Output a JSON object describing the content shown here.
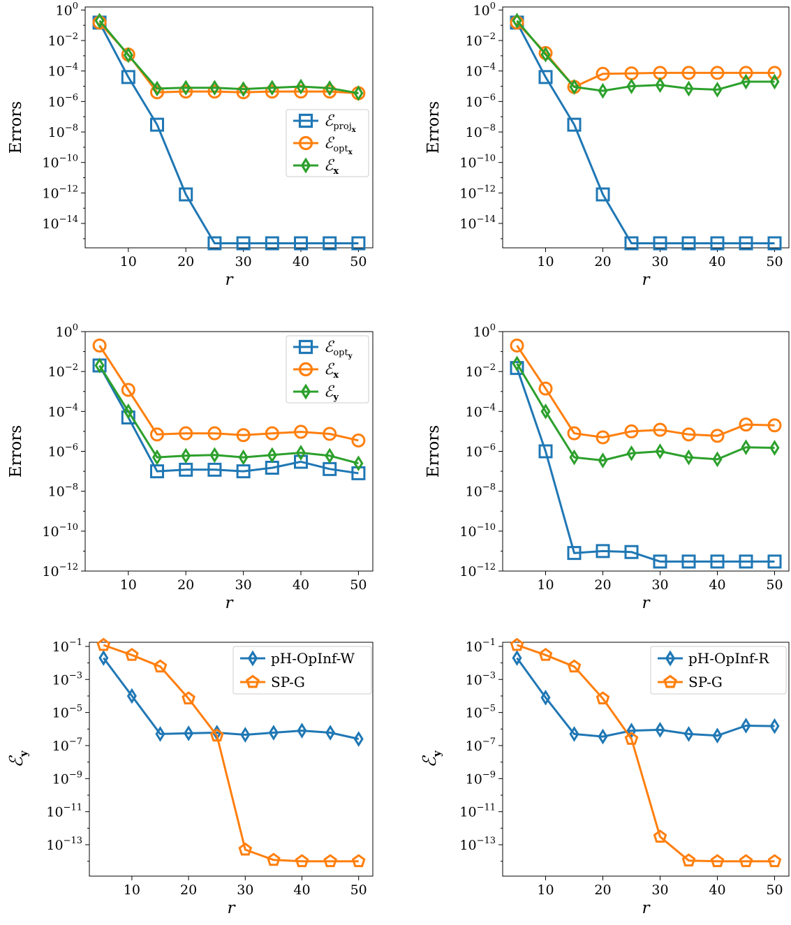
{
  "colors": {
    "blue": "#1f77b4",
    "orange": "#ff7f0e",
    "green": "#2ca02c"
  },
  "chart_data": [
    {
      "type": "line",
      "log_y": true,
      "xlabel": "r",
      "ylabel": "Errors",
      "xticks": [
        10,
        20,
        30,
        40,
        50
      ],
      "yticks": [
        0,
        -2,
        -4,
        -6,
        -8,
        -10,
        -12,
        -14
      ],
      "ylim_exp": [
        -15.6,
        0.2
      ],
      "legend": {
        "position": "center-right",
        "entries": [
          {
            "main": "ℰ",
            "sub": "proj",
            "subsub": "x"
          },
          {
            "main": "ℰ",
            "sub": "opt",
            "subsub": "x"
          },
          {
            "main": "ℰ",
            "sub": "x"
          }
        ]
      },
      "x": [
        5,
        10,
        15,
        20,
        25,
        30,
        35,
        40,
        45,
        50
      ],
      "series": [
        {
          "color": "blue",
          "marker": "square",
          "values": [
            0.15,
            4e-05,
            3e-08,
            8e-13,
            5e-16,
            5e-16,
            5e-16,
            5e-16,
            5e-16,
            5e-16
          ]
        },
        {
          "color": "orange",
          "marker": "circle",
          "values": [
            0.15,
            0.0012,
            4e-06,
            4.5e-06,
            4.5e-06,
            4e-06,
            4.5e-06,
            4.5e-06,
            4.5e-06,
            3.5e-06
          ]
        },
        {
          "color": "green",
          "marker": "diamond",
          "values": [
            0.2,
            0.0011,
            7e-06,
            8e-06,
            8e-06,
            6.5e-06,
            8e-06,
            9.5e-06,
            7.5e-06,
            3.5e-06
          ]
        }
      ]
    },
    {
      "type": "line",
      "log_y": true,
      "xlabel": "r",
      "ylabel": "Errors",
      "xticks": [
        10,
        20,
        30,
        40,
        50
      ],
      "yticks": [
        0,
        -2,
        -4,
        -6,
        -8,
        -10,
        -12,
        -14
      ],
      "ylim_exp": [
        -15.6,
        0.2
      ],
      "legend": null,
      "x": [
        5,
        10,
        15,
        20,
        25,
        30,
        35,
        40,
        45,
        50
      ],
      "series": [
        {
          "color": "blue",
          "marker": "square",
          "values": [
            0.15,
            4e-05,
            3e-08,
            8e-13,
            5e-16,
            5e-16,
            5e-16,
            5e-16,
            5e-16,
            5e-16
          ]
        },
        {
          "color": "orange",
          "marker": "circle",
          "values": [
            0.15,
            0.0015,
            9e-06,
            6.5e-05,
            7e-05,
            7.5e-05,
            7.5e-05,
            7.5e-05,
            7.5e-05,
            7.5e-05
          ]
        },
        {
          "color": "green",
          "marker": "diamond",
          "values": [
            0.2,
            0.0012,
            9e-06,
            5e-06,
            1e-05,
            1.2e-05,
            7e-06,
            6e-06,
            2e-05,
            2e-05
          ]
        }
      ]
    },
    {
      "type": "line",
      "log_y": true,
      "xlabel": "r",
      "ylabel": "Errors",
      "xticks": [
        10,
        20,
        30,
        40,
        50
      ],
      "yticks": [
        0,
        -2,
        -4,
        -6,
        -8,
        -10,
        -12
      ],
      "ylim_exp": [
        -12,
        0
      ],
      "legend": {
        "position": "top-right",
        "entries": [
          {
            "main": "ℰ",
            "sub": "opt",
            "subsub": "y"
          },
          {
            "main": "ℰ",
            "sub": "x"
          },
          {
            "main": "ℰ",
            "sub": "y"
          }
        ]
      },
      "x": [
        5,
        10,
        15,
        20,
        25,
        30,
        35,
        40,
        45,
        50
      ],
      "series": [
        {
          "color": "blue",
          "marker": "square",
          "values": [
            0.02,
            5e-05,
            1e-07,
            1.2e-07,
            1.2e-07,
            1e-07,
            1.5e-07,
            3e-07,
            1.3e-07,
            8e-08
          ]
        },
        {
          "color": "orange",
          "marker": "circle",
          "values": [
            0.2,
            0.0012,
            7e-06,
            8e-06,
            8e-06,
            6.5e-06,
            8e-06,
            9.5e-06,
            7.5e-06,
            3.5e-06
          ]
        },
        {
          "color": "green",
          "marker": "diamond",
          "values": [
            0.02,
            0.0001,
            5e-07,
            6e-07,
            6.5e-07,
            5e-07,
            6.5e-07,
            8.5e-07,
            6e-07,
            2.5e-07
          ]
        }
      ]
    },
    {
      "type": "line",
      "log_y": true,
      "xlabel": "r",
      "ylabel": "Errors",
      "xticks": [
        10,
        20,
        30,
        40,
        50
      ],
      "yticks": [
        0,
        -2,
        -4,
        -6,
        -8,
        -10,
        -12
      ],
      "ylim_exp": [
        -12,
        0
      ],
      "legend": null,
      "x": [
        5,
        10,
        15,
        20,
        25,
        30,
        35,
        40,
        45,
        50
      ],
      "series": [
        {
          "color": "blue",
          "marker": "square",
          "values": [
            0.015,
            1e-06,
            8e-12,
            1e-11,
            9e-12,
            3e-12,
            3e-12,
            3e-12,
            3e-12,
            3e-12
          ]
        },
        {
          "color": "orange",
          "marker": "circle",
          "values": [
            0.2,
            0.0014,
            8e-06,
            5e-06,
            1e-05,
            1.2e-05,
            7e-06,
            6e-06,
            2.2e-05,
            2e-05
          ]
        },
        {
          "color": "green",
          "marker": "diamond",
          "values": [
            0.025,
            0.0001,
            5e-07,
            3.5e-07,
            8e-07,
            1e-06,
            5e-07,
            4e-07,
            1.6e-06,
            1.5e-06
          ]
        }
      ]
    },
    {
      "type": "line",
      "log_y": true,
      "xlabel": "r",
      "ylabel": "ℰ",
      "ylabel_sub": "y",
      "xticks": [
        10,
        20,
        30,
        40,
        50
      ],
      "yticks": [
        -1,
        -3,
        -5,
        -7,
        -9,
        -11,
        -13
      ],
      "ylim_exp": [
        -14.9,
        -0.75
      ],
      "legend": {
        "position": "top-right",
        "entries": [
          {
            "text": "pH-OpInf-W"
          },
          {
            "text": "SP-G"
          }
        ]
      },
      "x": [
        5,
        10,
        15,
        20,
        25,
        30,
        35,
        40,
        45,
        50
      ],
      "series": [
        {
          "color": "blue",
          "marker": "diamond",
          "values": [
            0.02,
            0.0001,
            5e-07,
            5.5e-07,
            6e-07,
            4.5e-07,
            6e-07,
            8e-07,
            6e-07,
            2.5e-07
          ]
        },
        {
          "color": "orange",
          "marker": "pentagon",
          "values": [
            0.12,
            0.03,
            0.006,
            7e-05,
            4e-07,
            5e-14,
            1.2e-14,
            1e-14,
            1e-14,
            1e-14
          ]
        }
      ]
    },
    {
      "type": "line",
      "log_y": true,
      "xlabel": "r",
      "ylabel": "ℰ",
      "ylabel_sub": "y",
      "xticks": [
        10,
        20,
        30,
        40,
        50
      ],
      "yticks": [
        -1,
        -3,
        -5,
        -7,
        -9,
        -11,
        -13
      ],
      "ylim_exp": [
        -14.9,
        -0.75
      ],
      "legend": {
        "position": "top-right",
        "entries": [
          {
            "text": "pH-OpInf-R"
          },
          {
            "text": "SP-G"
          }
        ]
      },
      "x": [
        5,
        10,
        15,
        20,
        25,
        30,
        35,
        40,
        45,
        50
      ],
      "series": [
        {
          "color": "blue",
          "marker": "diamond",
          "values": [
            0.02,
            8e-05,
            5e-07,
            3.5e-07,
            8e-07,
            9e-07,
            5e-07,
            4e-07,
            1.6e-06,
            1.5e-06
          ]
        },
        {
          "color": "orange",
          "marker": "pentagon",
          "values": [
            0.12,
            0.03,
            0.006,
            7e-05,
            2.5e-07,
            3e-13,
            1.1e-14,
            1e-14,
            1e-14,
            1e-14
          ]
        }
      ]
    }
  ]
}
